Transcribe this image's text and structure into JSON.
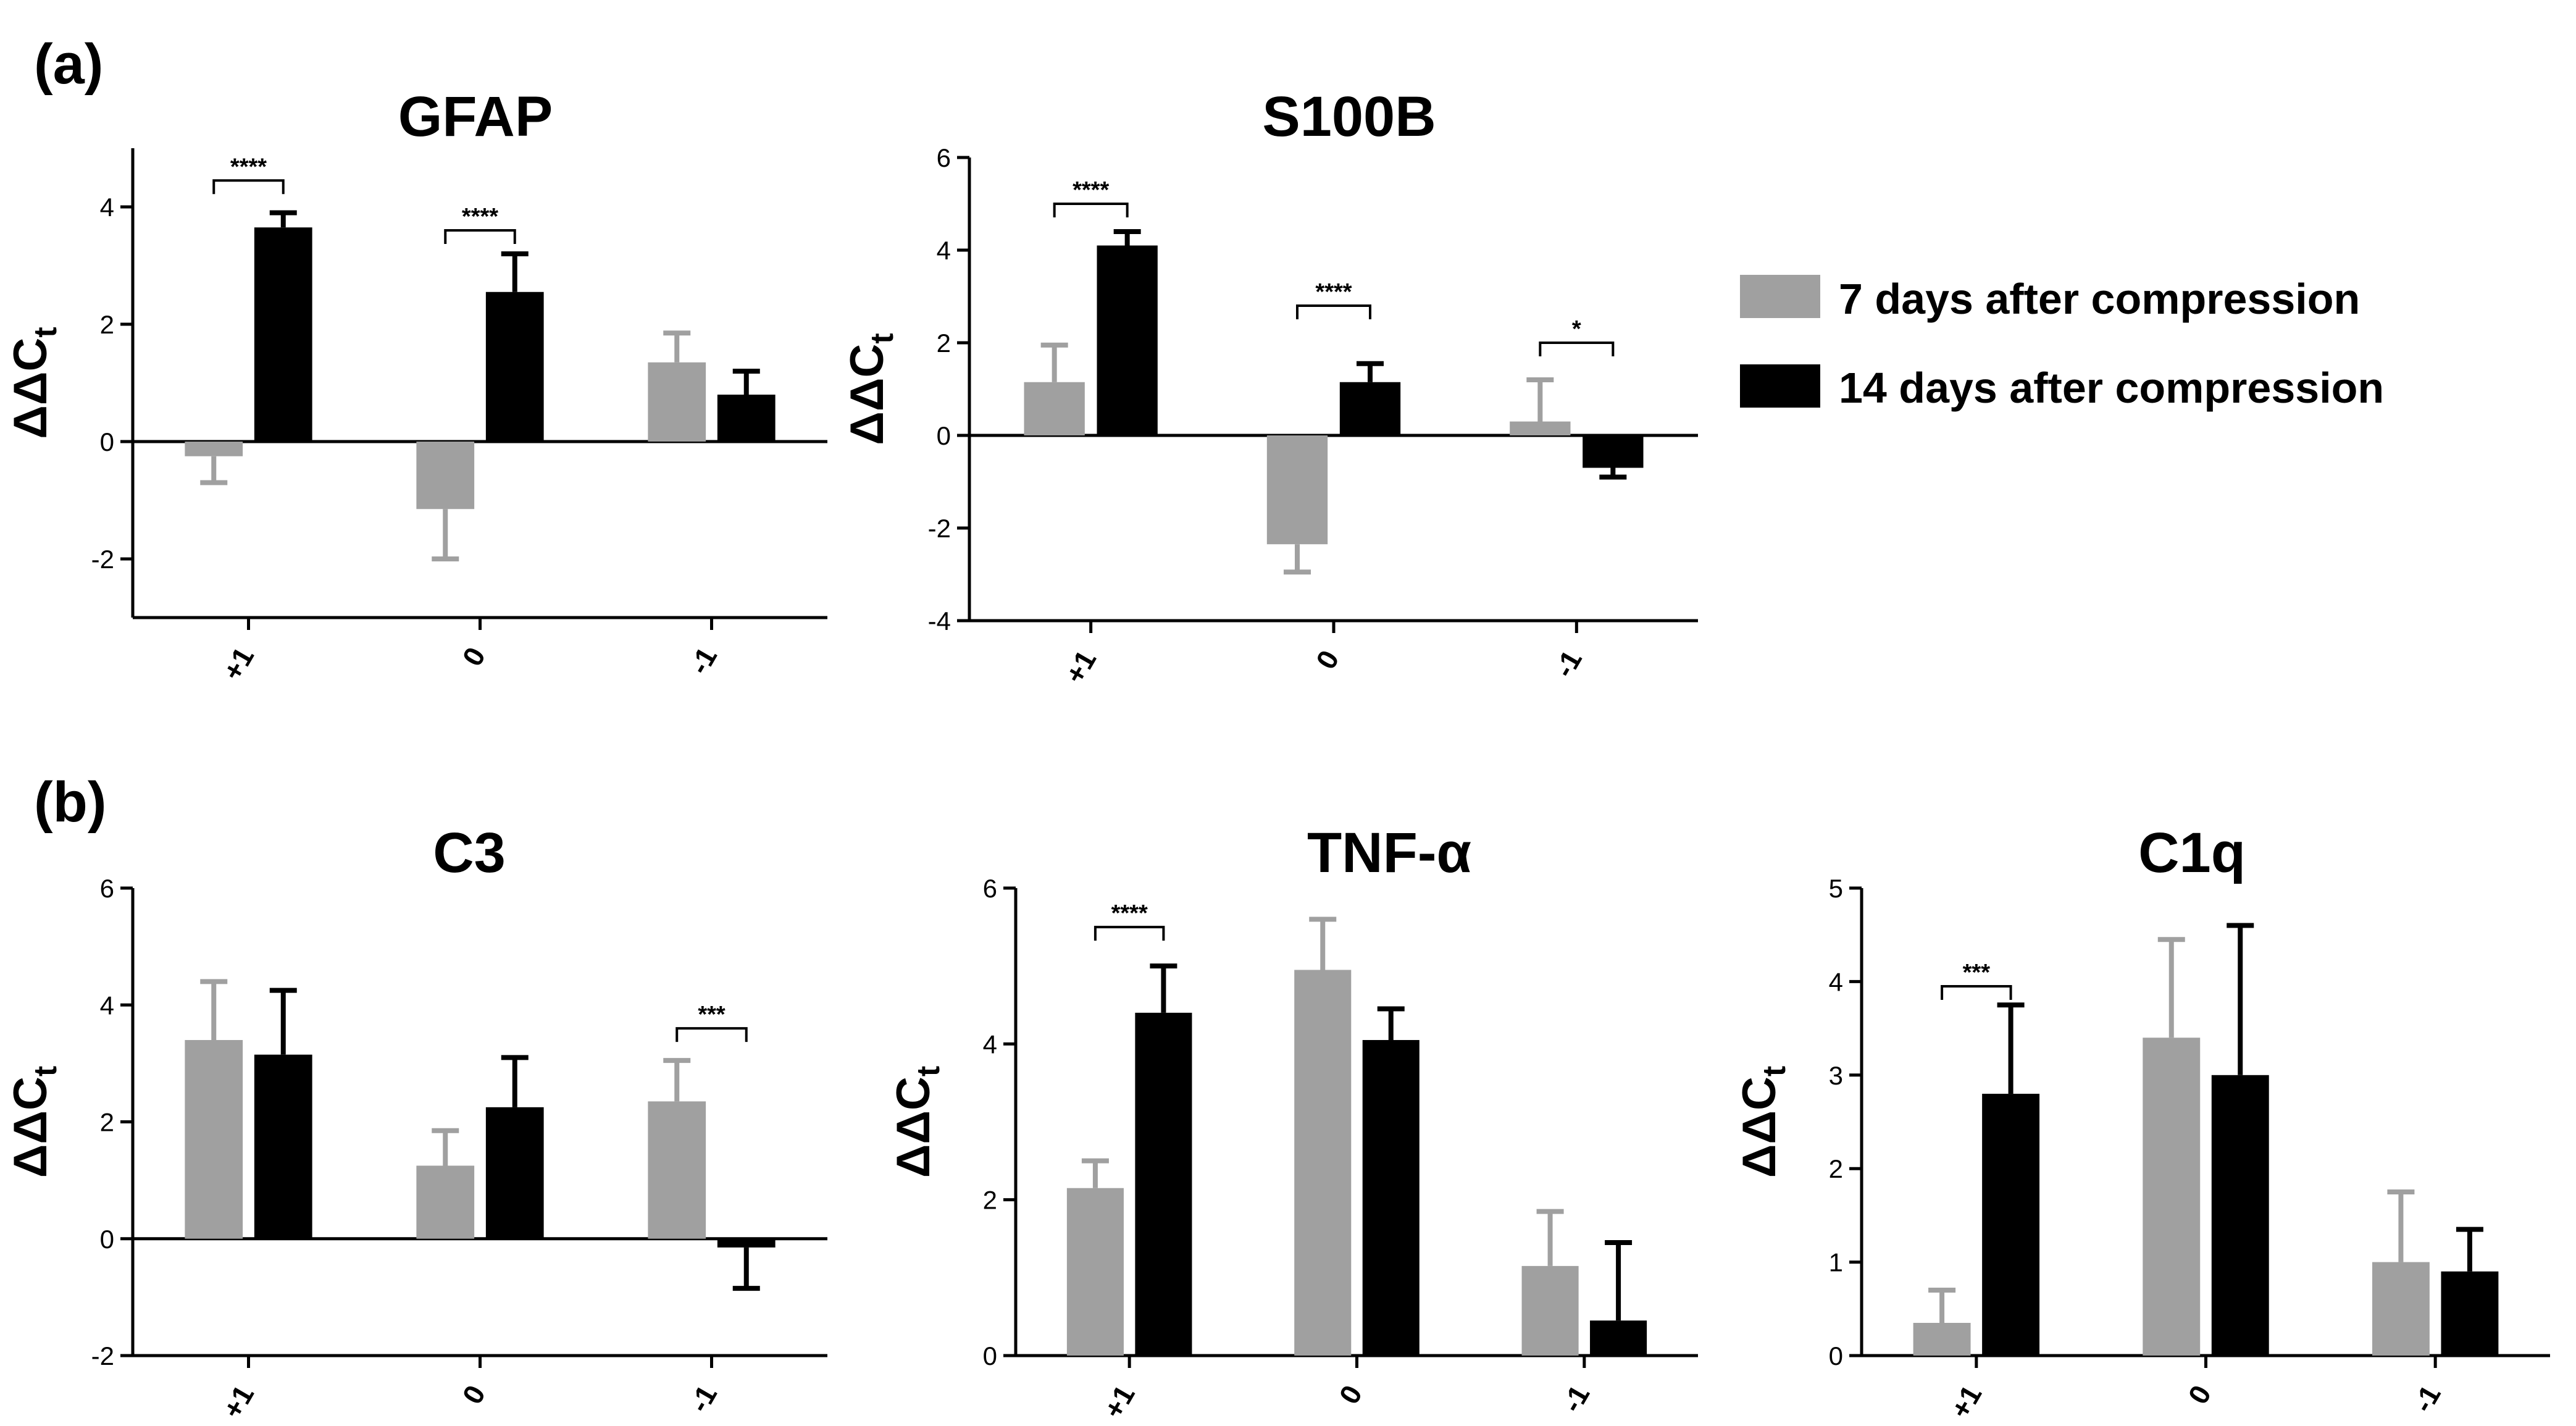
{
  "panels": {
    "a": "(a)",
    "b": "(b)"
  },
  "legend": {
    "series": [
      {
        "label": "7 days after compression",
        "color": "#a0a0a0"
      },
      {
        "label": "14 days after compression",
        "color": "#000000"
      }
    ]
  },
  "chart_data": [
    {
      "type": "bar",
      "panel": "a",
      "title": "GFAP",
      "ylabel": "ΔΔCt",
      "categories": [
        "+1",
        "0",
        "-1"
      ],
      "ylim": [
        -3,
        5
      ],
      "yticks": [
        -2,
        0,
        2,
        4
      ],
      "series": [
        {
          "name": "7 days after compression",
          "values": [
            -0.25,
            -1.15,
            1.35
          ],
          "errors": [
            0.45,
            0.85,
            0.5
          ]
        },
        {
          "name": "14 days after compression",
          "values": [
            3.65,
            2.55,
            0.8
          ],
          "errors": [
            0.25,
            0.65,
            0.4
          ]
        }
      ],
      "significance": [
        {
          "category": "+1",
          "label": "****",
          "y": 4.45
        },
        {
          "category": "0",
          "label": "****",
          "y": 3.6
        }
      ]
    },
    {
      "type": "bar",
      "panel": "a",
      "title": "S100B",
      "ylabel": "ΔΔCt",
      "categories": [
        "+1",
        "0",
        "-1"
      ],
      "ylim": [
        -4,
        6
      ],
      "yticks": [
        -4,
        -2,
        0,
        2,
        4,
        6
      ],
      "series": [
        {
          "name": "7 days after compression",
          "values": [
            1.15,
            -2.35,
            0.3
          ],
          "errors": [
            0.8,
            0.6,
            0.9
          ]
        },
        {
          "name": "14 days after compression",
          "values": [
            4.1,
            1.15,
            -0.7
          ],
          "errors": [
            0.3,
            0.4,
            0.2
          ]
        }
      ],
      "significance": [
        {
          "category": "+1",
          "label": "****",
          "y": 5.0
        },
        {
          "category": "0",
          "label": "****",
          "y": 2.8
        },
        {
          "category": "-1",
          "label": "*",
          "y": 2.0
        }
      ]
    },
    {
      "type": "bar",
      "panel": "b",
      "title": "C3",
      "ylabel": "ΔΔCt",
      "categories": [
        "+1",
        "0",
        "-1"
      ],
      "ylim": [
        -2,
        6
      ],
      "yticks": [
        -2,
        0,
        2,
        4,
        6
      ],
      "series": [
        {
          "name": "7 days after compression",
          "values": [
            3.4,
            1.25,
            2.35
          ],
          "errors": [
            1.0,
            0.6,
            0.7
          ]
        },
        {
          "name": "14 days after compression",
          "values": [
            3.15,
            2.25,
            -0.15
          ],
          "errors": [
            1.1,
            0.85,
            0.7
          ]
        }
      ],
      "significance": [
        {
          "category": "-1",
          "label": "***",
          "y": 3.6
        }
      ]
    },
    {
      "type": "bar",
      "panel": "b",
      "title": "TNF-α",
      "ylabel": "ΔΔCt",
      "categories": [
        "+1",
        "0",
        "-1"
      ],
      "ylim": [
        0,
        6
      ],
      "yticks": [
        0,
        2,
        4,
        6
      ],
      "series": [
        {
          "name": "7 days after compression",
          "values": [
            2.15,
            4.95,
            1.15
          ],
          "errors": [
            0.35,
            0.65,
            0.7
          ]
        },
        {
          "name": "14 days after compression",
          "values": [
            4.4,
            4.05,
            0.45
          ],
          "errors": [
            0.6,
            0.4,
            1.0
          ]
        }
      ],
      "significance": [
        {
          "category": "+1",
          "label": "****",
          "y": 5.5
        }
      ]
    },
    {
      "type": "bar",
      "panel": "b",
      "title": "C1q",
      "ylabel": "ΔΔCt",
      "categories": [
        "+1",
        "0",
        "-1"
      ],
      "ylim": [
        0,
        5
      ],
      "yticks": [
        0,
        1,
        2,
        3,
        4,
        5
      ],
      "series": [
        {
          "name": "7 days after compression",
          "values": [
            0.35,
            3.4,
            1.0
          ],
          "errors": [
            0.35,
            1.05,
            0.75
          ]
        },
        {
          "name": "14 days after compression",
          "values": [
            2.8,
            3.0,
            0.9
          ],
          "errors": [
            0.95,
            1.6,
            0.45
          ]
        }
      ],
      "significance": [
        {
          "category": "+1",
          "label": "***",
          "y": 3.95
        }
      ]
    }
  ]
}
